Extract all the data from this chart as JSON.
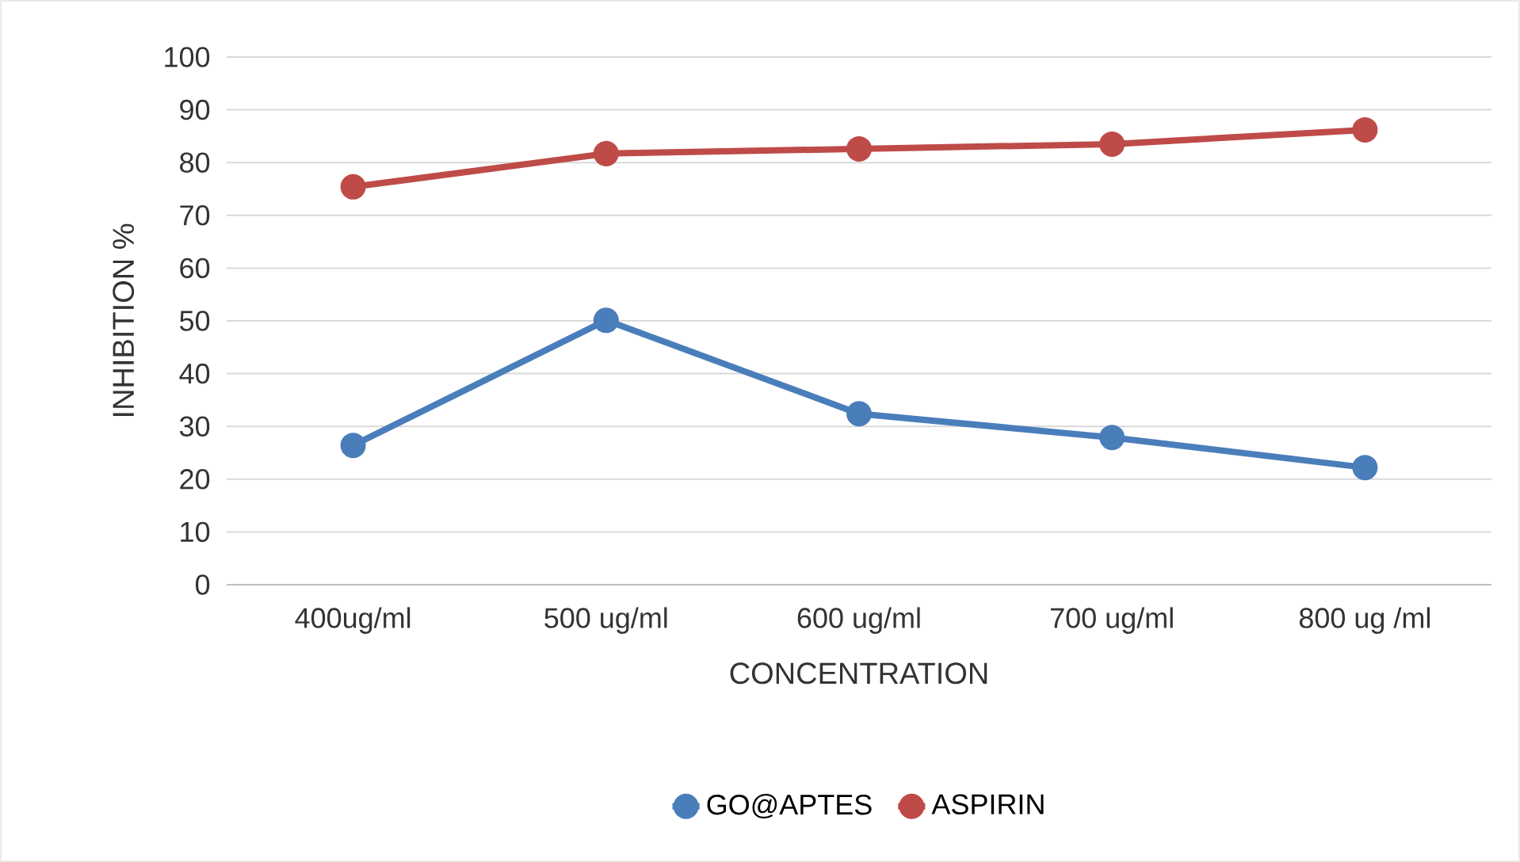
{
  "chart_data": {
    "type": "line",
    "xlabel": "CONCENTRATION",
    "ylabel": "INHIBITION %",
    "categories": [
      "400ug/ml",
      "500 ug/ml",
      "600 ug/ml",
      "700 ug/ml",
      "800 ug /ml"
    ],
    "series": [
      {
        "name": "GO@APTES",
        "color": "#4a7ebb",
        "values": [
          26.4,
          50.1,
          32.4,
          27.9,
          22.2
        ]
      },
      {
        "name": "ASPIRIN",
        "color": "#be4b48",
        "values": [
          75.4,
          81.7,
          82.6,
          83.5,
          86.2
        ]
      }
    ],
    "ylim": [
      0,
      100
    ],
    "yticks": [
      0,
      10,
      20,
      30,
      40,
      50,
      60,
      70,
      80,
      90,
      100
    ],
    "grid": "y",
    "legend": "bottom",
    "marker": "circle",
    "line_style": "solid"
  }
}
